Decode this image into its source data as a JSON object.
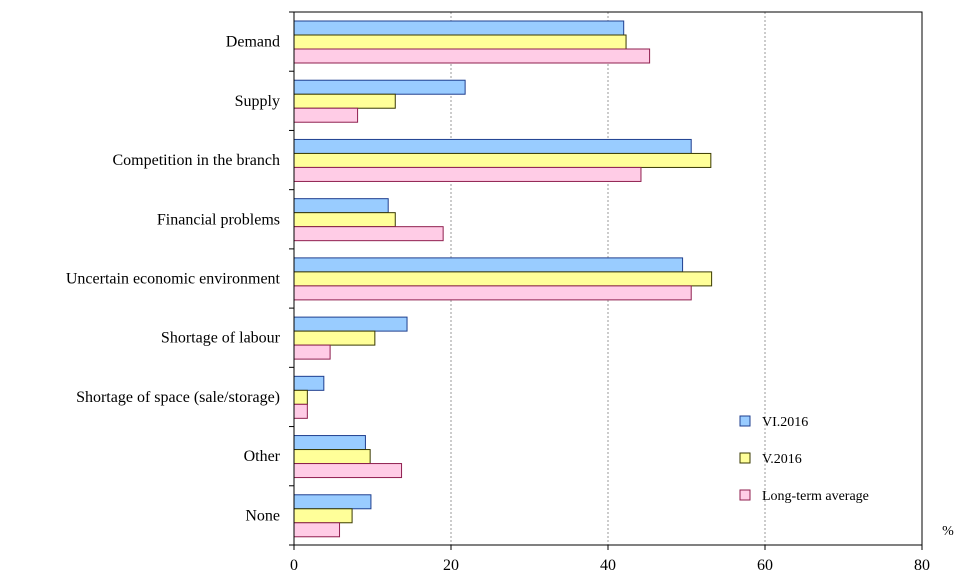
{
  "chart_data": {
    "type": "bar",
    "orientation": "horizontal",
    "categories": [
      "Demand",
      "Supply",
      "Competition in the branch",
      "Financial problems",
      "Uncertain economic environment",
      "Shortage of labour",
      "Shortage of space (sale/storage)",
      "Other",
      "None"
    ],
    "series": [
      {
        "name": "VI.2016",
        "color": "#99ccff",
        "stroke": "#1f3f8f",
        "values": [
          42.0,
          21.8,
          50.6,
          12.0,
          49.5,
          14.4,
          3.8,
          9.1,
          9.8
        ]
      },
      {
        "name": "V.2016",
        "color": "#ffff99",
        "stroke": "#3a3a00",
        "values": [
          42.3,
          12.9,
          53.1,
          12.9,
          53.2,
          10.3,
          1.7,
          9.7,
          7.4
        ]
      },
      {
        "name": "Long-term average",
        "color": "#ffcce6",
        "stroke": "#8f1f4f",
        "values": [
          45.3,
          8.1,
          44.2,
          19.0,
          50.6,
          4.6,
          1.7,
          13.7,
          5.8
        ]
      }
    ],
    "xlim": [
      0,
      80
    ],
    "xticks": [
      "0",
      "20",
      "40",
      "60",
      "80"
    ],
    "xunit": "%",
    "grid": "vertical dashed",
    "legend_position": "bottom-right inside plot"
  }
}
